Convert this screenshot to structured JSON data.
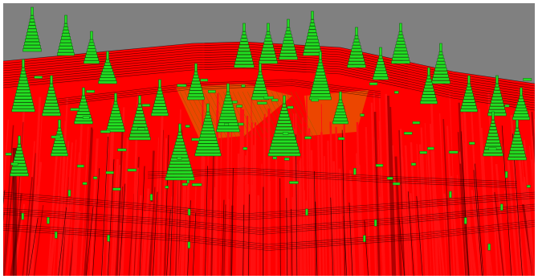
{
  "scene": {
    "description_type": "3d-render",
    "background_color": "#808080",
    "slab_color": "#ff0000",
    "slab_edge_color": "#000000",
    "tree_color": "#22dd22",
    "tree_edge_color": "#0a5a0a",
    "highlight_color": "#c8c800",
    "page_border_color": "#ffffff"
  }
}
